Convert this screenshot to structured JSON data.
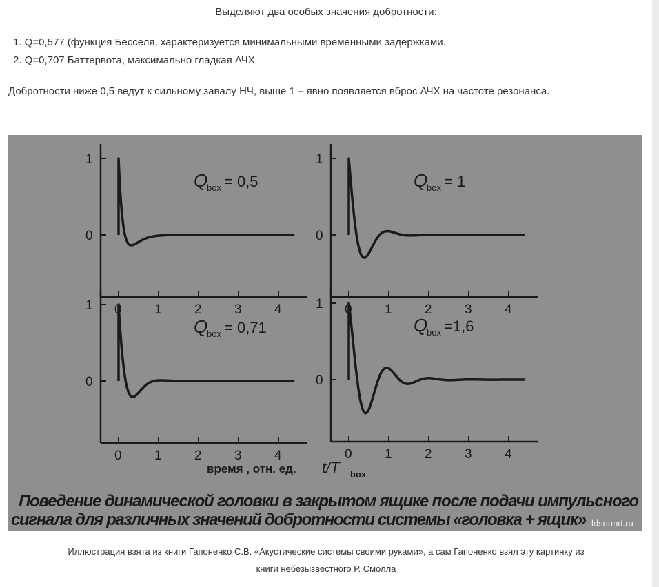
{
  "intro": {
    "title": "Выделяют два особых значения добротности:",
    "list": [
      "1. Q=0,577 (функция Бесселя, характеризуется минимальными временными задержками.",
      "2. Q=0,707 Баттервота, максимально гладкая АЧХ"
    ],
    "paragraph": "Добротности ниже 0,5 ведут к сильному завалу НЧ, выше 1 – явно появляется вброс АЧХ на частоте резонанса."
  },
  "figure": {
    "panels": [
      {
        "q_label": "= 0,5",
        "q": 0.5
      },
      {
        "q_label": "= 1",
        "q": 1
      },
      {
        "q_label": "= 0,71",
        "q": 0.71
      },
      {
        "q_label": "=1,6",
        "q": 1.6
      }
    ],
    "q_symbol": "Q",
    "q_subscript": "box",
    "y_ticks": [
      "1",
      "0"
    ],
    "x_ticks": [
      "0",
      "1",
      "2",
      "3",
      "4"
    ],
    "x_axis_label": "время , отн. ед.",
    "x_axis_var": "t/T",
    "x_axis_sub": "box",
    "caption_line1": "Поведение динамической головки в закрытом ящике после подачи импульсного",
    "caption_line2": "сигнала для различных значений добротности системы «головка + ящик»",
    "watermark": "ldsound.ru",
    "background": "#8e8f8f",
    "curve_color": "#1a1a1a"
  },
  "caption": {
    "line1": "Иллюстрация взята из книги Гапоненко С.В. «Акустические системы своими руками», а сам Гапоненко взял эту картинку из",
    "line2": "книги небезызвестного Р. Смолла"
  }
}
